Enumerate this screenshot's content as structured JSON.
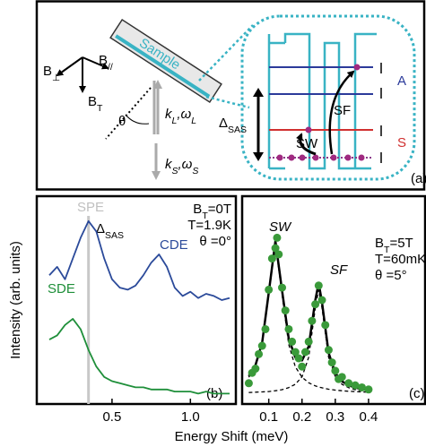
{
  "panel_a": {
    "label": "(a)",
    "sample": "Sample",
    "b_perp": [
      "B",
      "⊥"
    ],
    "b_par": [
      "B",
      "//"
    ],
    "b_t": [
      "B",
      "T"
    ],
    "theta": "θ",
    "k_l": [
      "k",
      "L",
      ",ω",
      "L"
    ],
    "k_s": [
      "k",
      "S",
      ",ω",
      "S"
    ],
    "delta": [
      "Δ",
      "SAS"
    ],
    "sw": "SW",
    "sf": "SF",
    "a": "A",
    "s": "S"
  },
  "figure": {
    "ylabel": "Intensity (arb. units)",
    "xlabel": "Energy Shift (meV)"
  },
  "chart_data": [
    {
      "type": "line",
      "panel": "(b)",
      "xlim": [
        0.02,
        1.29
      ],
      "xticks": [
        0.5,
        {
          "value": 1,
          "label": "1.0"
        }
      ],
      "ylim": [
        0,
        1
      ],
      "x": [
        0.1,
        0.15,
        0.2,
        0.25,
        0.3,
        0.35,
        0.4,
        0.45,
        0.5,
        0.55,
        0.6,
        0.65,
        0.7,
        0.75,
        0.8,
        0.85,
        0.9,
        0.95,
        1.0,
        1.05,
        1.1,
        1.15,
        1.2,
        1.25
      ],
      "series": [
        {
          "name": "CDE",
          "color": "#2b4a9a",
          "values": [
            0.62,
            0.66,
            0.6,
            0.7,
            0.8,
            0.88,
            0.83,
            0.7,
            0.6,
            0.56,
            0.55,
            0.57,
            0.62,
            0.68,
            0.72,
            0.66,
            0.56,
            0.52,
            0.54,
            0.51,
            0.53,
            0.52,
            0.5,
            0.51
          ]
        },
        {
          "name": "SDE",
          "color": "#1f8f3a",
          "values": [
            0.31,
            0.33,
            0.38,
            0.41,
            0.36,
            0.26,
            0.18,
            0.13,
            0.11,
            0.1,
            0.09,
            0.08,
            0.08,
            0.07,
            0.07,
            0.07,
            0.06,
            0.06,
            0.06,
            0.05,
            0.06,
            0.05,
            0.05,
            0.05
          ]
        }
      ],
      "spe_line": {
        "label": "SPE",
        "x": 0.35,
        "color": "#c8c8c8"
      },
      "delta": [
        "Δ",
        "SAS"
      ],
      "conditions": [
        [
          "B",
          "T",
          "=0T"
        ],
        [
          "T=1.9K"
        ],
        [
          "θ =0°"
        ]
      ]
    },
    {
      "type": "line",
      "panel": "(c)",
      "xlim": [
        0.02,
        0.57
      ],
      "xticks": [
        0.1,
        0.2,
        0.3,
        0.4
      ],
      "ylim": [
        0,
        1
      ],
      "x": [
        0.04,
        0.06,
        0.08,
        0.1,
        0.12,
        0.14,
        0.16,
        0.18,
        0.2,
        0.22,
        0.24,
        0.25,
        0.26,
        0.28,
        0.3,
        0.32,
        0.34,
        0.36,
        0.38,
        0.4
      ],
      "series": [
        {
          "name": "SW",
          "color": "#000000",
          "dash": true,
          "values": [
            0.129,
            0.179,
            0.287,
            0.527,
            0.77,
            0.527,
            0.287,
            0.179,
            0.129,
            0.102,
            0.087,
            0.082,
            0.078,
            0.071,
            0.067,
            0.064,
            0.061,
            0.06,
            0.058,
            0.057
          ]
        },
        {
          "name": "SF",
          "color": "#000000",
          "dash": true,
          "values": [
            0.055,
            0.057,
            0.058,
            0.06,
            0.064,
            0.069,
            0.079,
            0.095,
            0.131,
            0.225,
            0.463,
            0.55,
            0.463,
            0.225,
            0.131,
            0.095,
            0.079,
            0.069,
            0.064,
            0.06
          ]
        },
        {
          "color": "#000000",
          "dash": false,
          "values": [
            0.134,
            0.186,
            0.295,
            0.537,
            0.784,
            0.546,
            0.316,
            0.224,
            0.21,
            0.277,
            0.5,
            0.582,
            0.491,
            0.246,
            0.148,
            0.109,
            0.09,
            0.079,
            0.072,
            0.067
          ]
        }
      ],
      "points": {
        "color": "#3a9a3a",
        "x": [
          0.04,
          0.05,
          0.06,
          0.07,
          0.08,
          0.09,
          0.1,
          0.11,
          0.12,
          0.125,
          0.13,
          0.14,
          0.15,
          0.16,
          0.17,
          0.18,
          0.19,
          0.2,
          0.21,
          0.22,
          0.23,
          0.24,
          0.25,
          0.26,
          0.27,
          0.28,
          0.29,
          0.3,
          0.31,
          0.32,
          0.34,
          0.36,
          0.38,
          0.4
        ],
        "y": [
          0.1,
          0.15,
          0.17,
          0.24,
          0.28,
          0.36,
          0.55,
          0.7,
          0.75,
          0.8,
          0.72,
          0.56,
          0.45,
          0.36,
          0.3,
          0.25,
          0.22,
          0.18,
          0.25,
          0.3,
          0.4,
          0.48,
          0.57,
          0.5,
          0.38,
          0.26,
          0.2,
          0.16,
          0.12,
          0.13,
          0.1,
          0.09,
          0.08,
          0.07
        ]
      },
      "conditions": [
        [
          "B",
          "T",
          "=5T"
        ],
        [
          "T=60mK"
        ],
        [
          "θ =5°"
        ]
      ]
    }
  ]
}
